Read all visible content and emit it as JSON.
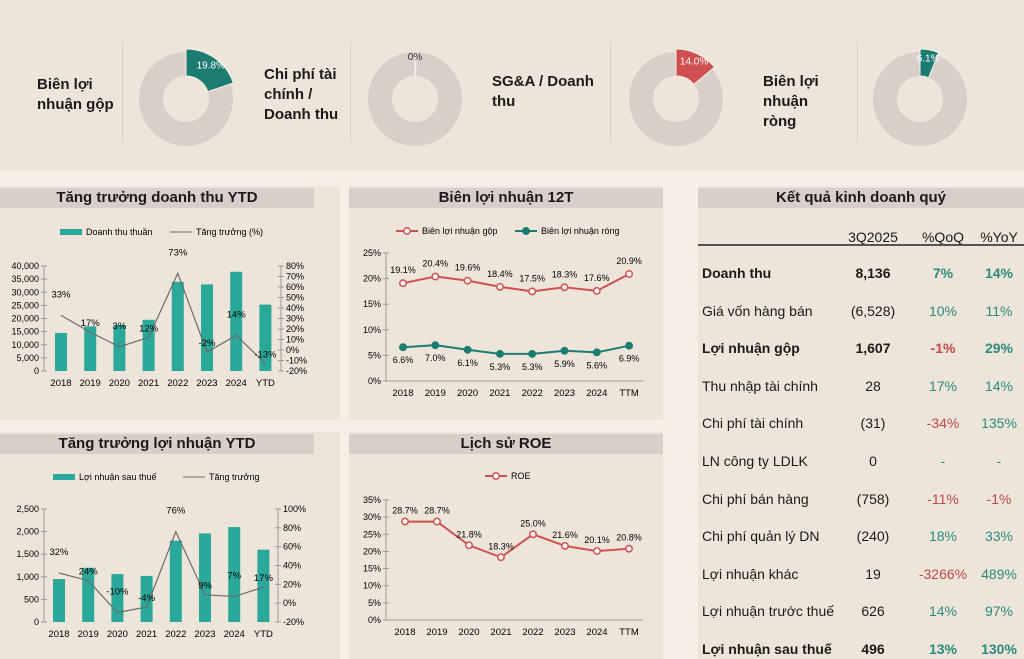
{
  "colors": {
    "teal": "#2aa89a",
    "teal_dark": "#1c7c72",
    "red": "#d0504f",
    "gray_line": "#6b6b6b",
    "ring": "#d8ceca",
    "pos": "#2a8a7e",
    "neg": "#c0474a"
  },
  "kpis": [
    {
      "label": "Biên lợi nhuận gộp",
      "value": 19.8,
      "value_label": "19.8%",
      "color": "#1c7c72"
    },
    {
      "label": "Chi phí tài chính / Doanh thu",
      "value": 0.4,
      "value_label": "0%",
      "color": "#d0504f"
    },
    {
      "label": "SG&A / Doanh thu",
      "value": 14.0,
      "value_label": "14.0%",
      "color": "#d0504f"
    },
    {
      "label": "Biên lợi nhuận ròng",
      "value": 6.1,
      "value_label": "6.1%",
      "color": "#1c7c72"
    }
  ],
  "chart_data": [
    {
      "type": "bar",
      "title": "Tăng trưởng doanh thu YTD",
      "categories": [
        "2018",
        "2019",
        "2020",
        "2021",
        "2022",
        "2023",
        "2024",
        "YTD"
      ],
      "series": [
        {
          "name": "Doanh thu thuần",
          "kind": "bar",
          "values": [
            14500,
            17000,
            17500,
            19500,
            34000,
            33000,
            37800,
            25300
          ]
        },
        {
          "name": "Tăng trưởng (%)",
          "kind": "line",
          "axis": "right",
          "values": [
            33,
            17,
            3,
            12,
            73,
            -2,
            14,
            -13
          ],
          "labels": [
            "33%",
            "17%",
            "3%",
            "12%",
            "73%",
            "-2%",
            "14%",
            "-13%"
          ]
        }
      ],
      "ylim": [
        0,
        40000
      ],
      "yticks": [
        "0",
        "5,000",
        "10,000",
        "15,000",
        "20,000",
        "25,000",
        "30,000",
        "35,000",
        "40,000"
      ],
      "y2lim": [
        -20,
        80
      ],
      "y2ticks": [
        "-20%",
        "-10%",
        "0%",
        "10%",
        "20%",
        "30%",
        "40%",
        "50%",
        "60%",
        "70%",
        "80%"
      ],
      "legend": "top"
    },
    {
      "type": "bar",
      "title": "Tăng trưởng lợi nhuận YTD",
      "categories": [
        "2018",
        "2019",
        "2020",
        "2021",
        "2022",
        "2023",
        "2024",
        "YTD"
      ],
      "series": [
        {
          "name": "Lợi nhuận sau thuế",
          "kind": "bar",
          "values": [
            950,
            1200,
            1060,
            1020,
            1800,
            1960,
            2100,
            1600
          ]
        },
        {
          "name": "Tăng trưởng",
          "kind": "line",
          "axis": "right",
          "values": [
            32,
            24,
            -10,
            -4,
            76,
            9,
            7,
            17
          ],
          "labels": [
            "32%",
            "24%",
            "-10%",
            "-4%",
            "76%",
            "9%",
            "7%",
            "17%"
          ]
        }
      ],
      "ylim": [
        0,
        2500
      ],
      "yticks": [
        "0",
        "500",
        "1,000",
        "1,500",
        "2,000",
        "2,500"
      ],
      "y2lim": [
        -20,
        100
      ],
      "y2ticks": [
        "-20%",
        "0%",
        "20%",
        "40%",
        "60%",
        "80%",
        "100%"
      ],
      "legend": "top"
    },
    {
      "type": "line",
      "title": "Biên lợi nhuận 12T",
      "categories": [
        "2018",
        "2019",
        "2020",
        "2021",
        "2022",
        "2023",
        "2024",
        "TTM"
      ],
      "series": [
        {
          "name": "Biên lợi nhuận gộp",
          "values": [
            19.1,
            20.4,
            19.6,
            18.4,
            17.5,
            18.3,
            17.6,
            20.9
          ],
          "labels": [
            "19.1%",
            "20.4%",
            "19.6%",
            "18.4%",
            "17.5%",
            "18.3%",
            "17.6%",
            "20.9%"
          ]
        },
        {
          "name": "Biên lợi nhuận ròng",
          "values": [
            6.6,
            7.0,
            6.1,
            5.3,
            5.3,
            5.9,
            5.6,
            6.9
          ],
          "labels": [
            "6.6%",
            "7.0%",
            "6.1%",
            "5.3%",
            "5.3%",
            "5.9%",
            "5.6%",
            "6.9%"
          ]
        }
      ],
      "ylim": [
        0,
        25
      ],
      "yticks": [
        "0%",
        "5%",
        "10%",
        "15%",
        "20%",
        "25%"
      ],
      "legend": "top"
    },
    {
      "type": "line",
      "title": "Lịch sử ROE",
      "categories": [
        "2018",
        "2019",
        "2020",
        "2021",
        "2022",
        "2023",
        "2024",
        "TTM"
      ],
      "series": [
        {
          "name": "ROE",
          "values": [
            28.7,
            28.7,
            21.8,
            18.3,
            25.0,
            21.6,
            20.1,
            20.8
          ],
          "labels": [
            "28.7%",
            "28.7%",
            "21.8%",
            "18.3%",
            "25.0%",
            "21.6%",
            "20.1%",
            "20.8%"
          ]
        }
      ],
      "ylim": [
        0,
        35
      ],
      "yticks": [
        "0%",
        "5%",
        "10%",
        "15%",
        "20%",
        "25%",
        "30%",
        "35%"
      ],
      "legend": "top"
    }
  ],
  "table": {
    "title": "Kết quả kinh doanh quý",
    "headers": [
      "",
      "3Q2025",
      "%QoQ",
      "%YoY"
    ],
    "rows": [
      {
        "label": "Doanh thu",
        "value": "8,136",
        "qoq": "7%",
        "yoy": "14%",
        "bold": true
      },
      {
        "label": "Giá vốn hàng bán",
        "value": "(6,528)",
        "qoq": "10%",
        "yoy": "11%"
      },
      {
        "label": "Lợi nhuận gộp",
        "value": "1,607",
        "qoq": "-1%",
        "yoy": "29%",
        "bold": true
      },
      {
        "label": "Thu nhập tài chính",
        "value": "28",
        "qoq": "17%",
        "yoy": "14%"
      },
      {
        "label": "Chi phí tài chính",
        "value": "(31)",
        "qoq": "-34%",
        "yoy": "135%"
      },
      {
        "label": "LN công ty LDLK",
        "value": "0",
        "qoq": "-",
        "yoy": "-"
      },
      {
        "label": "Chi phí bán hàng",
        "value": "(758)",
        "qoq": "-11%",
        "yoy": "-1%"
      },
      {
        "label": "Chi phí quản lý DN",
        "value": "(240)",
        "qoq": "18%",
        "yoy": "33%"
      },
      {
        "label": "Lợi nhuận khác",
        "value": "19",
        "qoq": "-3266%",
        "yoy": "489%"
      },
      {
        "label": "Lợi nhuận trước thuế",
        "value": "626",
        "qoq": "14%",
        "yoy": "97%"
      },
      {
        "label": "Lợi nhuận sau thuế",
        "value": "496",
        "qoq": "13%",
        "yoy": "130%",
        "bold": true
      }
    ]
  }
}
